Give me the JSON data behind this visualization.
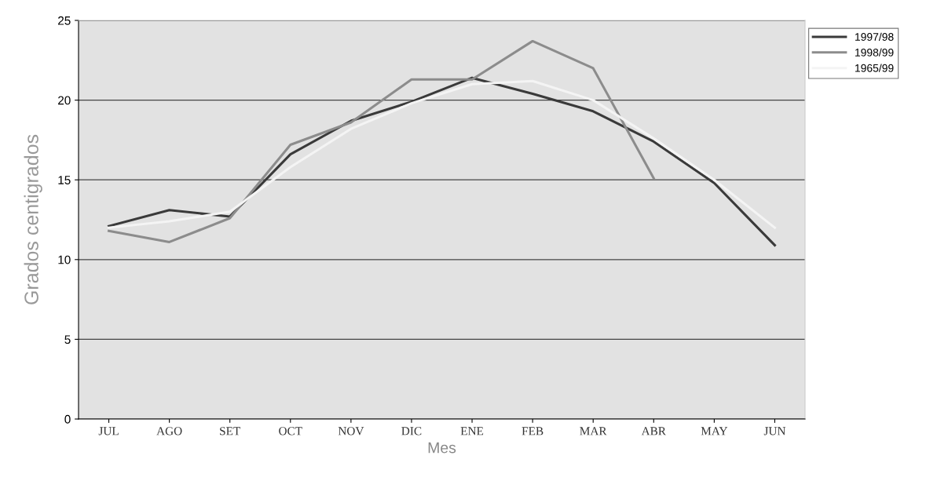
{
  "chart_data": {
    "type": "line",
    "xlabel": "Mes",
    "ylabel": "Grados centigrados",
    "categories": [
      "JUL",
      "AGO",
      "SET",
      "OCT",
      "NOV",
      "DIC",
      "ENE",
      "FEB",
      "MAR",
      "ABR",
      "MAY",
      "JUN"
    ],
    "series": [
      {
        "name": "1997/98",
        "color": "#3a3a3a",
        "values": [
          12.1,
          13.1,
          12.7,
          16.6,
          18.7,
          19.9,
          21.4,
          20.4,
          19.3,
          17.4,
          14.8,
          10.9
        ]
      },
      {
        "name": "1998/99",
        "color": "#8c8c8c",
        "values": [
          11.8,
          11.1,
          12.6,
          17.2,
          18.6,
          21.3,
          21.3,
          23.7,
          22.0,
          15.1,
          null,
          null
        ]
      },
      {
        "name": "1965/99",
        "color": "#f4f4f4",
        "values": [
          12.0,
          12.4,
          13.0,
          15.8,
          18.2,
          19.8,
          21.0,
          21.2,
          20.0,
          17.6,
          15.0,
          12.0
        ]
      }
    ],
    "ylim": [
      0,
      25
    ],
    "yticks": [
      0,
      5,
      10,
      15,
      20,
      25
    ],
    "grid": "y",
    "legend": "top right",
    "marker": "none",
    "line_style": "solid"
  }
}
